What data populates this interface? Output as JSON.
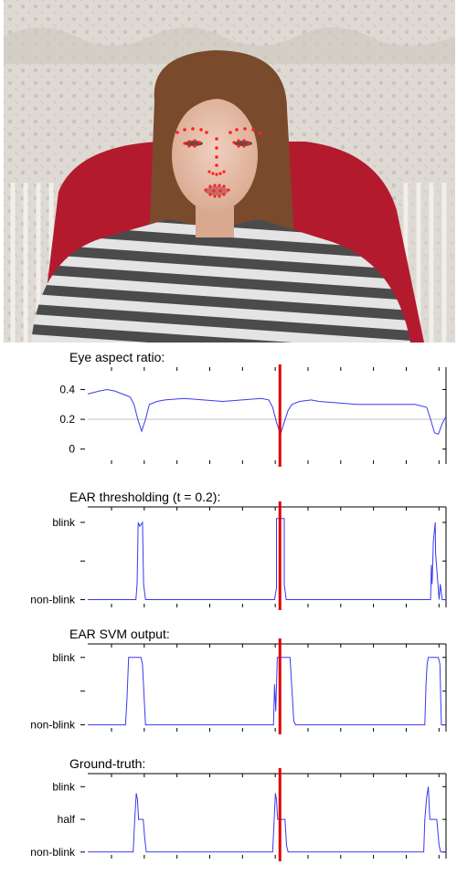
{
  "photo": {
    "curtain_color": "#d9d6cf",
    "chair_color": "#b3192c",
    "shirt_stripe_dark": "#4a4a4a",
    "shirt_stripe_light": "#e6e6e6",
    "hair_color": "#7a4a2c",
    "skin_color": "#e9c3ae",
    "landmark_color": "#ff2020",
    "cursor_line_color": "#dd0000"
  },
  "chart_data": [
    {
      "type": "line",
      "title": "Eye aspect ratio:",
      "ylim": [
        -0.1,
        0.55
      ],
      "y_ticks": [
        {
          "value": 0.4,
          "label": "0.4"
        },
        {
          "value": 0.2,
          "label": "0.2"
        },
        {
          "value": 0.0,
          "label": "0"
        }
      ],
      "threshold": 0.2,
      "cursor_frame": 50,
      "series": [
        {
          "color": "#3a3af0",
          "x": [
            0,
            3,
            5,
            7,
            9,
            10,
            11,
            12,
            13,
            14,
            15,
            16,
            18,
            20,
            25,
            30,
            35,
            40,
            45,
            47,
            48,
            49,
            50,
            51,
            52,
            53,
            55,
            58,
            60,
            65,
            70,
            75,
            80,
            85,
            88,
            89,
            90,
            91,
            92,
            93
          ],
          "y": [
            0.37,
            0.39,
            0.4,
            0.39,
            0.37,
            0.36,
            0.35,
            0.3,
            0.2,
            0.12,
            0.2,
            0.3,
            0.32,
            0.33,
            0.34,
            0.33,
            0.32,
            0.33,
            0.34,
            0.33,
            0.28,
            0.18,
            0.1,
            0.18,
            0.26,
            0.3,
            0.32,
            0.33,
            0.32,
            0.31,
            0.3,
            0.3,
            0.3,
            0.3,
            0.28,
            0.2,
            0.11,
            0.1,
            0.17,
            0.22
          ]
        }
      ]
    },
    {
      "type": "line",
      "title": "EAR thresholding (t = 0.2):",
      "ylim": [
        -0.1,
        1.2
      ],
      "y_ticks": [
        {
          "value": 1.0,
          "label": "blink"
        },
        {
          "value": 0.5,
          "label": ""
        },
        {
          "value": 0.0,
          "label": "non-blink"
        }
      ],
      "cursor_frame": 50,
      "series": [
        {
          "color": "#3a3af0",
          "x": [
            0,
            12.5,
            12.8,
            13.1,
            13.5,
            14.2,
            14.5,
            15.0,
            48.5,
            49.0,
            49.0,
            51.0,
            51.0,
            51.5,
            89.0,
            89.2,
            89.4,
            89.7,
            90.2,
            90.3,
            91.2,
            91.5,
            92,
            93
          ],
          "y": [
            0.0,
            0.0,
            0.2,
            1.0,
            0.95,
            1.0,
            0.2,
            0.0,
            0.0,
            0.15,
            1.05,
            1.05,
            0.2,
            0.0,
            0.0,
            0.45,
            0.2,
            0.75,
            1.0,
            0.6,
            0.0,
            0.2,
            0.0,
            0.0
          ]
        }
      ]
    },
    {
      "type": "line",
      "title": "EAR SVM output:",
      "ylim": [
        -0.1,
        1.2
      ],
      "y_ticks": [
        {
          "value": 1.0,
          "label": "blink"
        },
        {
          "value": 0.5,
          "label": ""
        },
        {
          "value": 0.0,
          "label": "non-blink"
        }
      ],
      "cursor_frame": 50,
      "series": [
        {
          "color": "#3a3af0",
          "x": [
            0,
            9.8,
            10.2,
            10.6,
            13.8,
            14.2,
            15.0,
            48.2,
            48.5,
            48.8,
            49.2,
            52.5,
            53.5,
            54.0,
            87.5,
            87.8,
            88.1,
            88.4,
            91.0,
            91.4,
            91.8,
            93
          ],
          "y": [
            0.0,
            0.0,
            0.4,
            1.0,
            1.0,
            0.9,
            0.0,
            0.0,
            0.6,
            0.2,
            1.0,
            1.0,
            0.05,
            0.0,
            0.0,
            0.6,
            0.9,
            1.0,
            1.0,
            0.9,
            0.0,
            0.0
          ]
        }
      ]
    },
    {
      "type": "line",
      "title": "Ground-truth:",
      "ylim": [
        -0.1,
        1.2
      ],
      "y_ticks": [
        {
          "value": 1.0,
          "label": "blink"
        },
        {
          "value": 0.5,
          "label": "half"
        },
        {
          "value": 0.0,
          "label": "non-blink"
        }
      ],
      "cursor_frame": 50,
      "series": [
        {
          "color": "#3a3af0",
          "x": [
            0,
            11.8,
            12.2,
            12.6,
            12.9,
            13.2,
            13.6,
            14.4,
            14.8,
            15.2,
            48.0,
            48.4,
            48.7,
            49.0,
            49.3,
            49.6,
            51.2,
            51.6,
            52,
            87.2,
            87.5,
            88.0,
            88.4,
            88.8,
            89.3,
            90.6,
            91.2,
            91.6,
            93
          ],
          "y": [
            0.0,
            0.0,
            0.5,
            0.9,
            0.8,
            0.5,
            0.5,
            0.5,
            0.2,
            0.0,
            0.0,
            0.5,
            0.9,
            0.8,
            0.5,
            0.5,
            0.5,
            0.1,
            0.0,
            0.0,
            0.5,
            0.85,
            1.0,
            0.5,
            0.5,
            0.5,
            0.1,
            0.0,
            0.0
          ]
        }
      ]
    }
  ]
}
